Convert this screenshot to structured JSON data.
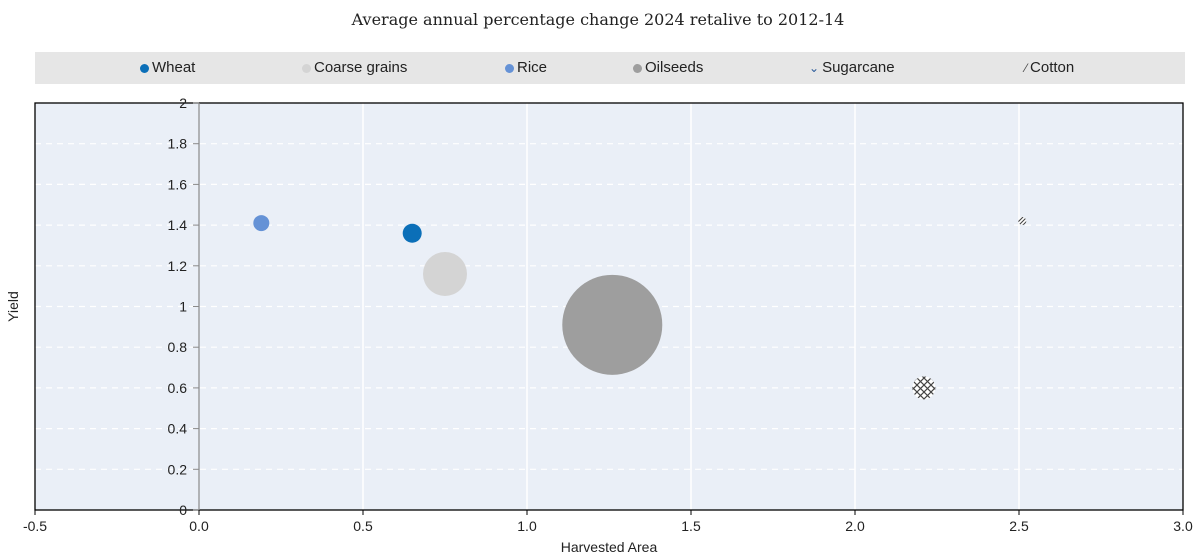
{
  "subtitle": "Average annual percentage change 2024 retalive to 2012-14",
  "chart_data": {
    "type": "scatter",
    "variant": "bubble",
    "xlabel": "Harvested Area",
    "ylabel": "Yield",
    "xlim": [
      -0.5,
      3.0
    ],
    "ylim": [
      0,
      2
    ],
    "xticks": [
      -0.5,
      0.0,
      0.5,
      1.0,
      1.5,
      2.0,
      2.5,
      3.0
    ],
    "xtick_labels": [
      "-0.5",
      "0.0",
      "0.5",
      "1.0",
      "1.5",
      "2.0",
      "2.5",
      "3.0"
    ],
    "yticks": [
      0,
      0.2,
      0.4,
      0.6,
      0.8,
      1,
      1.2,
      1.4,
      1.6,
      1.8,
      2
    ],
    "ytick_labels": [
      "0",
      "0.2",
      "0.4",
      "0.6",
      "0.8",
      "1",
      "1.2",
      "1.4",
      "1.6",
      "1.8",
      "2"
    ],
    "grid": true,
    "legend_position": "top",
    "series": [
      {
        "name": "Wheat",
        "x": 0.65,
        "y": 1.36,
        "relative_size": 0.19,
        "color": "#0b6fb8",
        "fill": "solid"
      },
      {
        "name": "Coarse grains",
        "x": 0.75,
        "y": 1.16,
        "relative_size": 0.44,
        "color": "#d4d4d4",
        "fill": "solid"
      },
      {
        "name": "Rice",
        "x": 0.19,
        "y": 1.41,
        "relative_size": 0.16,
        "color": "#6592d6",
        "fill": "solid"
      },
      {
        "name": "Oilseeds",
        "x": 1.26,
        "y": 0.91,
        "relative_size": 1.0,
        "color": "#9e9e9e",
        "fill": "solid"
      },
      {
        "name": "Sugarcane",
        "x": 2.21,
        "y": 0.6,
        "relative_size": 0.23,
        "color": "#444444",
        "fill": "crosshatch"
      },
      {
        "name": "Cotton",
        "x": 2.51,
        "y": 1.42,
        "relative_size": 0.06,
        "color": "#444444",
        "fill": "diagonal"
      }
    ]
  }
}
